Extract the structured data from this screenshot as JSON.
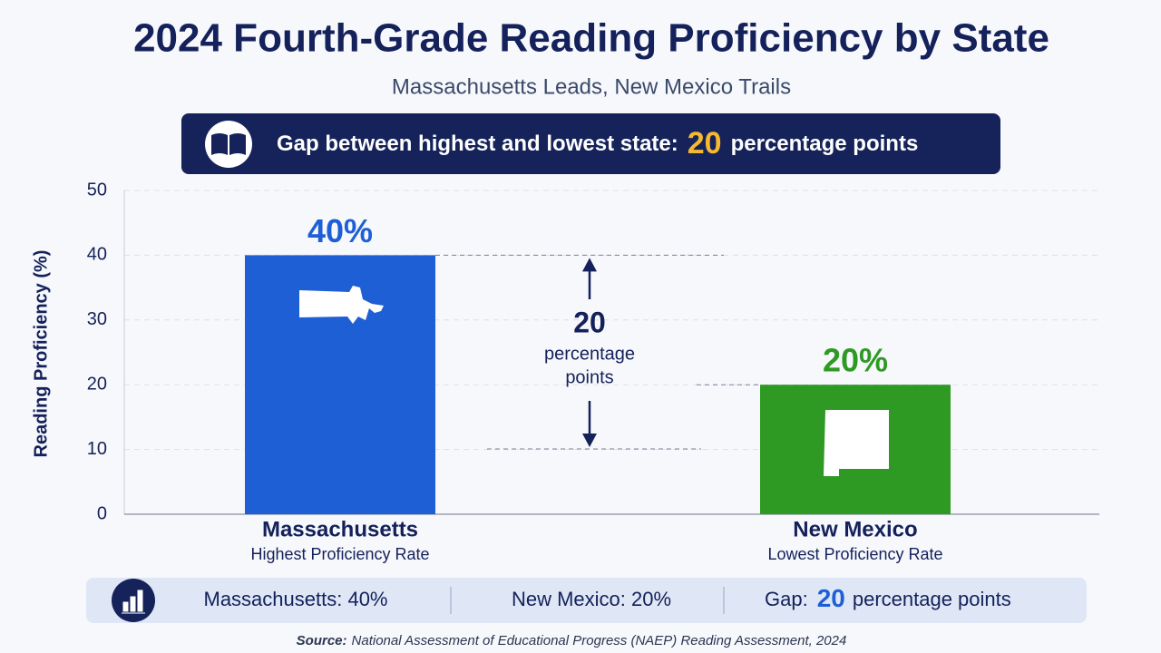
{
  "header": {
    "title": "2024 Fourth-Grade Reading Proficiency by State",
    "subtitle": "Massachusetts Leads, New Mexico Trails"
  },
  "banner": {
    "text": "Gap between highest and lowest state:",
    "gap": 20,
    "unit": "percentage points"
  },
  "chart_data": {
    "type": "bar",
    "y_label": "Reading Proficiency (%)",
    "categories": [
      "Massachusetts",
      "New Mexico"
    ],
    "category_notes": [
      "Highest Proficiency Rate",
      "Lowest Proficiency Rate"
    ],
    "values": [
      40,
      20
    ],
    "value_labels": [
      "40%",
      "20%"
    ],
    "colors": [
      "#1f5fd6",
      "#2e9a23"
    ],
    "ylim": [
      0,
      50
    ],
    "yticks": [
      0,
      10,
      20,
      30,
      40,
      50
    ],
    "grid": true,
    "annotation": {
      "value": 20,
      "label_lines": [
        "percentage",
        "points"
      ]
    }
  },
  "summary": {
    "items": [
      "Massachusetts: 40%",
      "New Mexico: 20%"
    ],
    "gap_label": "Gap:",
    "gap_value": 20,
    "gap_unit": "percentage points"
  },
  "source": {
    "label": "Source:",
    "text": "National Assessment of Educational Progress (NAEP) Reading Assessment, 2024"
  }
}
